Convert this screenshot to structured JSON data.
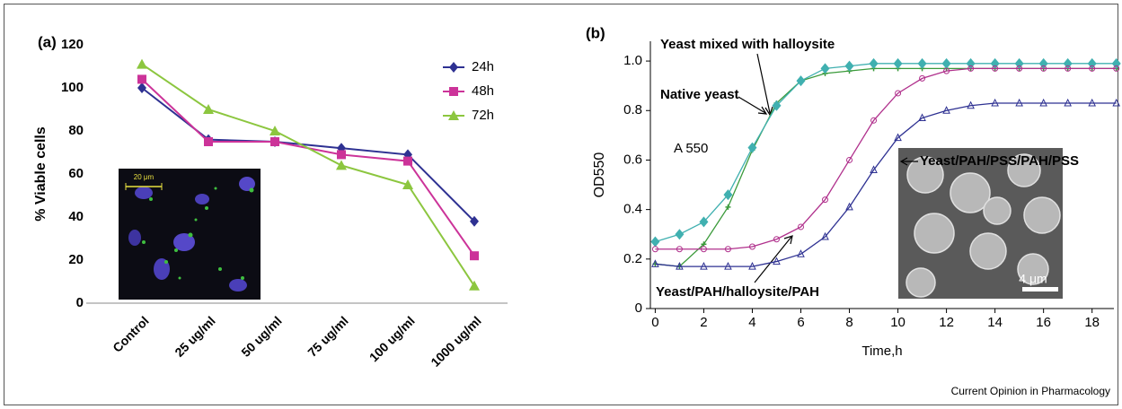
{
  "chart_data": [
    {
      "type": "line",
      "panel_label": "(a)",
      "ylabel": "% Viable cells",
      "categories": [
        "Control",
        "25 ug/ml",
        "50 ug/ml",
        "75 ug/ml",
        "100 ug/ml",
        "1000 ug/ml"
      ],
      "ylim": [
        0,
        120
      ],
      "yticks": [
        0,
        20,
        40,
        60,
        80,
        100,
        120
      ],
      "legend": "upper right",
      "series": [
        {
          "name": "24h",
          "color": "#2e3192",
          "marker": "diamond",
          "values": [
            100,
            76,
            75,
            72,
            69,
            38
          ]
        },
        {
          "name": "48h",
          "color": "#cc3399",
          "marker": "square",
          "values": [
            104,
            75,
            75,
            69,
            66,
            22
          ]
        },
        {
          "name": "72h",
          "color": "#8cc63f",
          "marker": "triangle",
          "values": [
            111,
            90,
            80,
            64,
            55,
            8
          ]
        }
      ],
      "inset_scale_label": "20 μm"
    },
    {
      "type": "line",
      "panel_label": "(b)",
      "xlabel": "Time,h",
      "ylabel": "OD550",
      "x": [
        0,
        1,
        2,
        3,
        4,
        5,
        6,
        7,
        8,
        9,
        10,
        11,
        12,
        13,
        14,
        15,
        16,
        17,
        18,
        19
      ],
      "xlim": [
        -0.2,
        18.9
      ],
      "xticks": [
        0,
        2,
        4,
        6,
        8,
        10,
        12,
        14,
        16,
        18
      ],
      "ylim": [
        0,
        1.08
      ],
      "yticks": [
        0,
        0.2,
        0.4,
        0.6,
        0.8,
        {
          "value": 1,
          "label": "1.0"
        }
      ],
      "series": [
        {
          "name": "Yeast mixed with halloysite",
          "color": "#3a9a3a",
          "marker": "plus",
          "values": [
            0.18,
            0.17,
            0.26,
            0.41,
            0.64,
            0.83,
            0.92,
            0.95,
            0.96,
            0.97,
            0.97,
            0.97,
            0.97,
            0.97,
            0.97,
            0.97,
            0.97,
            0.97,
            0.97,
            0.97
          ]
        },
        {
          "name": "Native yeast",
          "color": "#40b0b0",
          "marker": "diamond",
          "values": [
            0.27,
            0.3,
            0.35,
            0.46,
            0.65,
            0.82,
            0.92,
            0.97,
            0.98,
            0.99,
            0.99,
            0.99,
            0.99,
            0.99,
            0.99,
            0.99,
            0.99,
            0.99,
            0.99,
            0.99
          ]
        },
        {
          "name": "Yeast/PAH/PSS/PAH/PSS",
          "color": "#2e3192",
          "marker": "triangle-open",
          "values": [
            0.18,
            0.17,
            0.17,
            0.17,
            0.17,
            0.19,
            0.22,
            0.29,
            0.41,
            0.56,
            0.69,
            0.77,
            0.8,
            0.82,
            0.83,
            0.83,
            0.83,
            0.83,
            0.83,
            0.83
          ]
        },
        {
          "name": "Yeast/PAH/halloysite/PAH",
          "color": "#b0308c",
          "marker": "circle-open",
          "values": [
            0.24,
            0.24,
            0.24,
            0.24,
            0.25,
            0.28,
            0.33,
            0.44,
            0.6,
            0.76,
            0.87,
            0.93,
            0.96,
            0.97,
            0.97,
            0.97,
            0.97,
            0.97,
            0.97,
            0.97
          ]
        }
      ],
      "annotations": [
        "A 550"
      ],
      "inset_scale_label": "4 μm"
    }
  ],
  "footer": "Current Opinion in Pharmacology"
}
